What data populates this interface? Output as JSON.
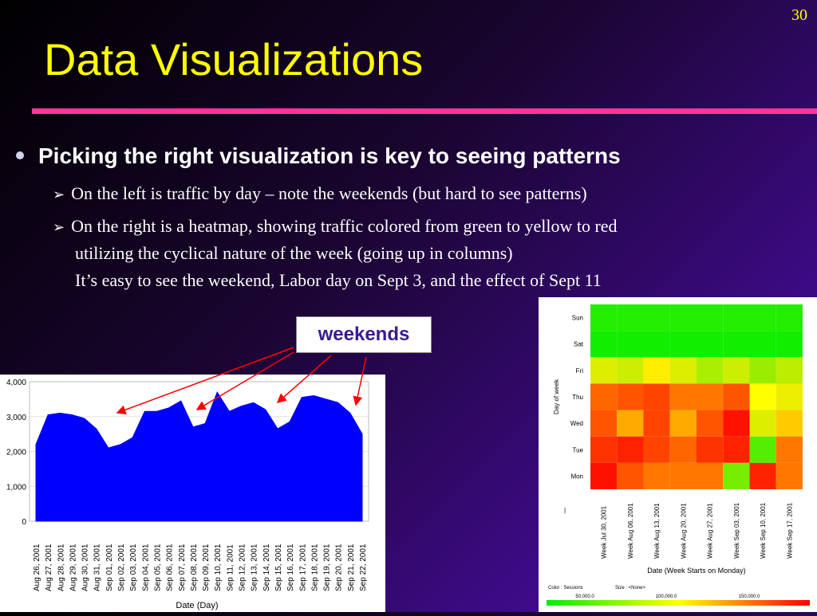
{
  "slide": {
    "number": "30",
    "title": "Data Visualizations",
    "bullet": "Picking the right visualization is key to seeing patterns",
    "sub1": "On the left is traffic by day – note the weekends (but hard to see patterns)",
    "sub2_line1": "On the right is a heatmap, showing traffic colored from green to yellow to red",
    "sub2_line2": "utilizing the cyclical nature of the week (going up in columns)",
    "sub2_line3": "It’s easy to see the weekend, Labor day on Sept 3, and the effect of Sept 11",
    "callout": "weekends",
    "colors": {
      "title": "#ffff00",
      "rule": "#ff3399",
      "area": "#0000ff",
      "arrow": "#ff0000"
    }
  },
  "chart_data": [
    {
      "type": "area",
      "title": "",
      "xlabel": "Date (Day)",
      "ylabel": "",
      "ylim": [
        0,
        4000
      ],
      "yticks": [
        "0",
        "1,000",
        "2,000",
        "3,000",
        "4,000"
      ],
      "x": [
        "Aug 26, 2001",
        "Aug 27, 2001",
        "Aug 28, 2001",
        "Aug 29, 2001",
        "Aug 30, 2001",
        "Aug 31, 2001",
        "Sep 01, 2001",
        "Sep 02, 2001",
        "Sep 03, 2001",
        "Sep 04, 2001",
        "Sep 05, 2001",
        "Sep 06, 2001",
        "Sep 07, 2001",
        "Sep 08, 2001",
        "Sep 09, 2001",
        "Sep 10, 2001",
        "Sep 11, 2001",
        "Sep 12, 2001",
        "Sep 13, 2001",
        "Sep 14, 2001",
        "Sep 15, 2001",
        "Sep 16, 2001",
        "Sep 17, 2001",
        "Sep 18, 2001",
        "Sep 19, 2001",
        "Sep 20, 2001",
        "Sep 21, 2001",
        "Sep 22, 2001"
      ],
      "values": [
        2200,
        3050,
        3100,
        3050,
        2950,
        2650,
        2100,
        2200,
        2400,
        3150,
        3150,
        3250,
        3450,
        2700,
        2800,
        3700,
        3150,
        3300,
        3400,
        3200,
        2650,
        2850,
        3550,
        3600,
        3500,
        3400,
        3100,
        2500
      ],
      "grid": true
    },
    {
      "type": "heatmap",
      "title": "",
      "xlabel": "Date (Week Starts on Monday)",
      "ylabel": "Day of week",
      "rows": [
        "Sun",
        "Sat",
        "Fri",
        "Thu",
        "Wed",
        "Tue",
        "Mon"
      ],
      "columns": [
        "Week Jul 30, 2001",
        "Week Aug 06, 2001",
        "Week Aug 13, 2001",
        "Week Aug 20, 2001",
        "Week Aug 27, 2001",
        "Week Sep 03, 2001",
        "Week Sep 10, 2001",
        "Week Sep 17, 2001"
      ],
      "cell_colors": [
        [
          "#22ee00",
          "#22ee00",
          "#22ee00",
          "#22ee00",
          "#22ee00",
          "#22ee00",
          "#22ee00",
          "#22ee00"
        ],
        [
          "#11ee00",
          "#11ee00",
          "#11ee00",
          "#11ee00",
          "#11ee00",
          "#11ee00",
          "#11ee00",
          "#11ee00"
        ],
        [
          "#ddee00",
          "#ccee00",
          "#ffee00",
          "#ddee00",
          "#aaee00",
          "#ccee00",
          "#99ee00",
          "#bbee00"
        ],
        [
          "#ff6600",
          "#ff5500",
          "#ff4400",
          "#ff7700",
          "#ff7700",
          "#ff5500",
          "#ffff00",
          "#eeee00"
        ],
        [
          "#ff5500",
          "#ffaa00",
          "#ff4400",
          "#ffaa00",
          "#ff5500",
          "#ff1100",
          "#ddee00",
          "#ffcc00"
        ],
        [
          "#ff3300",
          "#ff2200",
          "#ff4400",
          "#ff6600",
          "#ff3300",
          "#ff2200",
          "#55ee00",
          "#ff7700"
        ],
        [
          "#ff1100",
          "#ff5500",
          "#ff7700",
          "#ff7700",
          "#ff7700",
          "#77ee00",
          "#ff2200",
          "#ff7700"
        ]
      ],
      "legend": {
        "color_label": "Color :  Sessions",
        "size_label": "Size :  <None>",
        "ticks": [
          "50,000.0",
          "100,000.0",
          "150,000.0"
        ]
      }
    }
  ]
}
